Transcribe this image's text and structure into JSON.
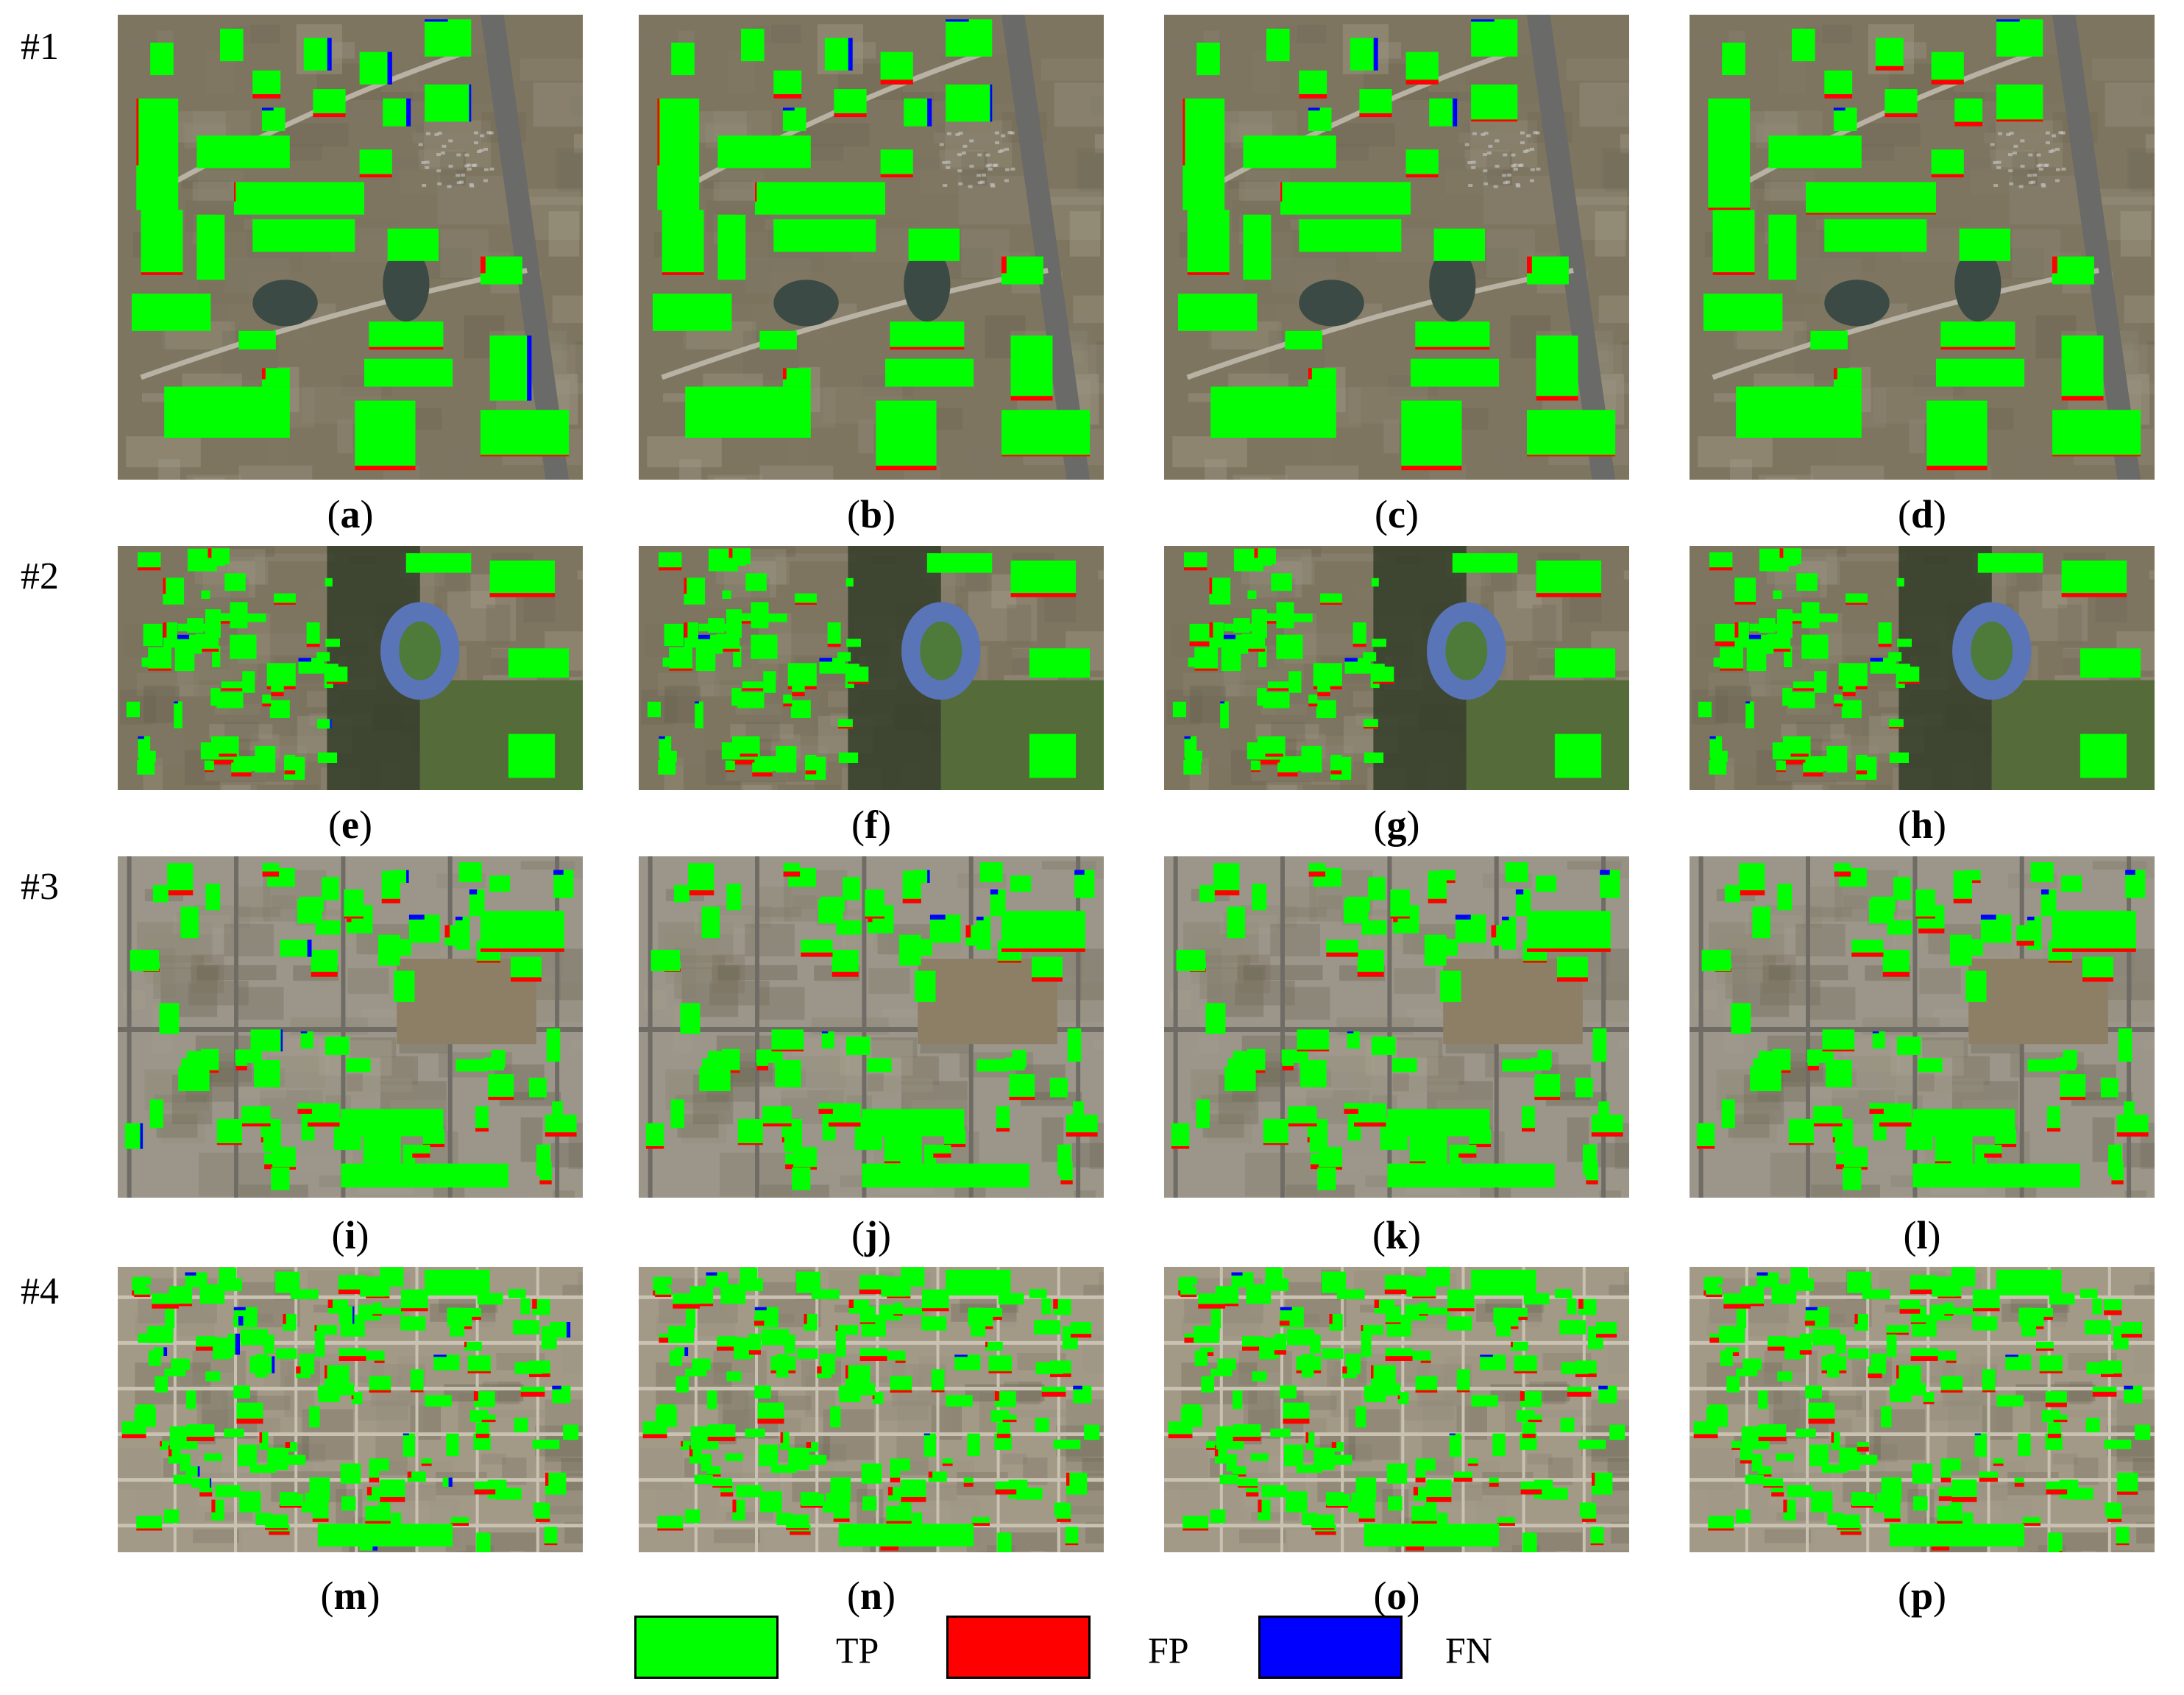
{
  "rows": [
    {
      "label": "#1",
      "panels": [
        "a",
        "b",
        "c",
        "d"
      ]
    },
    {
      "label": "#2",
      "panels": [
        "e",
        "f",
        "g",
        "h"
      ]
    },
    {
      "label": "#3",
      "panels": [
        "i",
        "j",
        "k",
        "l"
      ]
    },
    {
      "label": "#4",
      "panels": [
        "m",
        "n",
        "o",
        "p"
      ]
    }
  ],
  "legend": [
    {
      "label": "TP",
      "color": "#00ff00"
    },
    {
      "label": "FP",
      "color": "#ff0000"
    },
    {
      "label": "FN",
      "color": "#0000ff"
    }
  ],
  "colors": {
    "tp": "#00ff00",
    "fp": "#ff0000",
    "fn": "#0000ff"
  }
}
